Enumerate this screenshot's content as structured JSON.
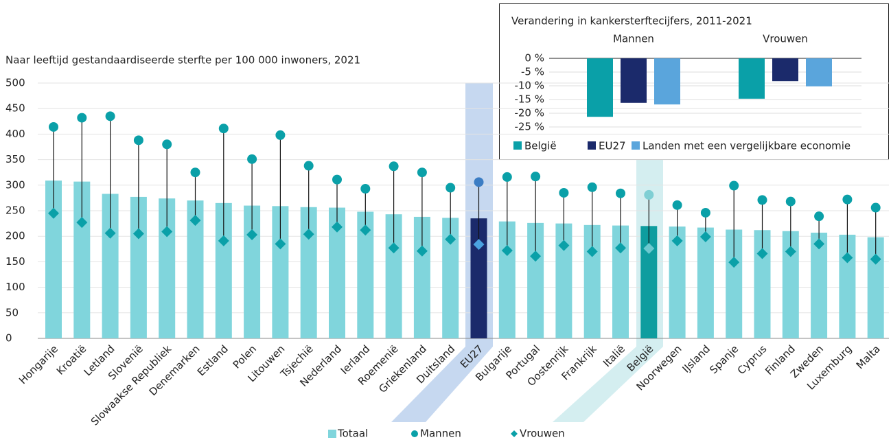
{
  "chart_data": [
    {
      "type": "bar_dot",
      "ylabel": "Naar leeftijd gestandaardiseerde sterfte per 100 000 inwoners, 2021",
      "categories": [
        "Hongarije",
        "Kroatië",
        "Letland",
        "Slovenië",
        "Slowaakse Republiek",
        "Denemarken",
        "Estland",
        "Polen",
        "Litouwen",
        "Tsjechië",
        "Nederland",
        "Ierland",
        "Roemenië",
        "Griekenland",
        "Duitsland",
        "EU27",
        "Bulgarije",
        "Portugal",
        "Oostenrijk",
        "Frankrijk",
        "Italië",
        "België",
        "Noorwegen",
        "IJsland",
        "Spanje",
        "Cyprus",
        "Finland",
        "Zweden",
        "Luxemburg",
        "Malta"
      ],
      "series": [
        {
          "name": "Totaal",
          "color": "#80d5dc",
          "marker": "bar",
          "colors": [
            "#80d5dc",
            "#80d5dc",
            "#80d5dc",
            "#80d5dc",
            "#80d5dc",
            "#80d5dc",
            "#80d5dc",
            "#80d5dc",
            "#80d5dc",
            "#80d5dc",
            "#80d5dc",
            "#80d5dc",
            "#80d5dc",
            "#80d5dc",
            "#80d5dc",
            "#1b2a6b",
            "#80d5dc",
            "#80d5dc",
            "#80d5dc",
            "#80d5dc",
            "#80d5dc",
            "#0e9d9f",
            "#80d5dc",
            "#80d5dc",
            "#80d5dc",
            "#80d5dc",
            "#80d5dc",
            "#80d5dc",
            "#80d5dc",
            "#80d5dc"
          ],
          "values": [
            309,
            307,
            283,
            277,
            274,
            270,
            265,
            260,
            259,
            257,
            256,
            248,
            243,
            238,
            236,
            235,
            229,
            226,
            225,
            222,
            221,
            220,
            219,
            217,
            213,
            212,
            210,
            207,
            203,
            198
          ]
        },
        {
          "name": "Mannen",
          "color": "#0aa0a8",
          "marker": "circle",
          "colors": [
            "#0aa0a8",
            "#0aa0a8",
            "#0aa0a8",
            "#0aa0a8",
            "#0aa0a8",
            "#0aa0a8",
            "#0aa0a8",
            "#0aa0a8",
            "#0aa0a8",
            "#0aa0a8",
            "#0aa0a8",
            "#0aa0a8",
            "#0aa0a8",
            "#0aa0a8",
            "#0aa0a8",
            "#3b7dc4",
            "#0aa0a8",
            "#0aa0a8",
            "#0aa0a8",
            "#0aa0a8",
            "#0aa0a8",
            "#7fcfd4",
            "#0aa0a8",
            "#0aa0a8",
            "#0aa0a8",
            "#0aa0a8",
            "#0aa0a8",
            "#0aa0a8",
            "#0aa0a8",
            "#0aa0a8"
          ],
          "values": [
            414,
            432,
            435,
            388,
            380,
            325,
            411,
            351,
            398,
            338,
            311,
            293,
            337,
            325,
            295,
            306,
            316,
            317,
            285,
            296,
            284,
            281,
            261,
            246,
            299,
            271,
            268,
            239,
            272,
            256
          ]
        },
        {
          "name": "Vrouwen",
          "color": "#0aa0a8",
          "marker": "diamond",
          "colors": [
            "#0aa0a8",
            "#0aa0a8",
            "#0aa0a8",
            "#0aa0a8",
            "#0aa0a8",
            "#0aa0a8",
            "#0aa0a8",
            "#0aa0a8",
            "#0aa0a8",
            "#0aa0a8",
            "#0aa0a8",
            "#0aa0a8",
            "#0aa0a8",
            "#0aa0a8",
            "#0aa0a8",
            "#4ba3e0",
            "#0aa0a8",
            "#0aa0a8",
            "#0aa0a8",
            "#0aa0a8",
            "#0aa0a8",
            "#6cc9cf",
            "#0aa0a8",
            "#0aa0a8",
            "#0aa0a8",
            "#0aa0a8",
            "#0aa0a8",
            "#0aa0a8",
            "#0aa0a8",
            "#0aa0a8"
          ],
          "values": [
            245,
            227,
            206,
            205,
            209,
            231,
            191,
            203,
            185,
            204,
            218,
            212,
            177,
            171,
            194,
            184,
            172,
            161,
            182,
            170,
            177,
            176,
            191,
            199,
            149,
            166,
            170,
            185,
            158,
            155
          ]
        }
      ],
      "ylim": [
        0,
        500
      ],
      "yticks": [
        0,
        50,
        100,
        150,
        200,
        250,
        300,
        350,
        400,
        450,
        500
      ],
      "grid": true
    },
    {
      "type": "bar",
      "title": "Verandering in kankersterftecijfers, 2011-2021",
      "categories": [
        "Mannen",
        "Vrouwen"
      ],
      "series": [
        {
          "name": "België",
          "color": "#0aa0a8",
          "values": [
            -21.3,
            -14.7
          ]
        },
        {
          "name": "EU27",
          "color": "#1b2a6b",
          "values": [
            -16.2,
            -8.3
          ]
        },
        {
          "name": "Landen met een vergelijkbare economie",
          "color": "#5aa5dc",
          "values": [
            -16.8,
            -10.2
          ]
        }
      ],
      "ylim": [
        -25,
        0
      ],
      "yticks": [
        {
          "value": 0,
          "label": "0 %"
        },
        {
          "value": -5,
          "label": "-5 %"
        },
        {
          "value": -10,
          "label": "-10 %"
        },
        {
          "value": -15,
          "label": "-15 %"
        },
        {
          "value": -20,
          "label": "-20 %"
        },
        {
          "value": -25,
          "label": "-25 %"
        }
      ],
      "grid": true
    }
  ]
}
